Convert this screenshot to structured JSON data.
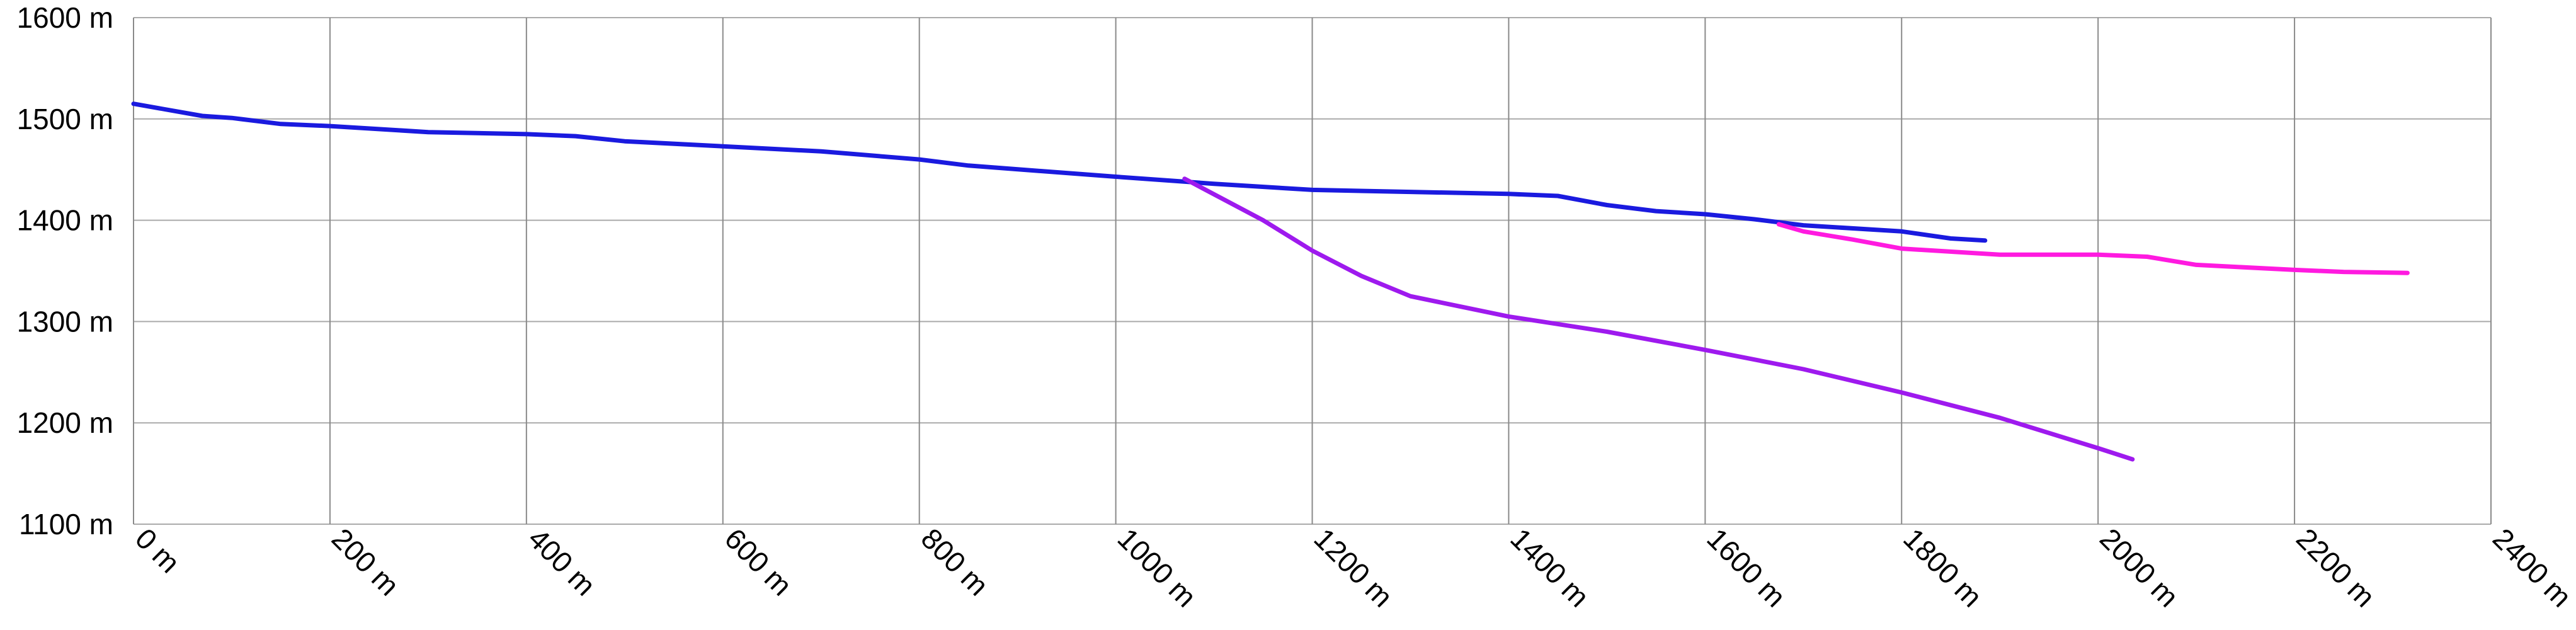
{
  "chart_data": {
    "type": "line",
    "title": "",
    "xlabel": "",
    "ylabel": "",
    "xlim": [
      0,
      2400
    ],
    "ylim": [
      1100,
      1600
    ],
    "x_ticks": [
      "0 m",
      "200 m",
      "400 m",
      "600 m",
      "800 m",
      "1000 m",
      "1200 m",
      "1400 m",
      "1600 m",
      "1800 m",
      "2000 m",
      "2200 m",
      "2400 m"
    ],
    "y_ticks": [
      "1100 m",
      "1200 m",
      "1300 m",
      "1400 m",
      "1500 m",
      "1600 m"
    ],
    "grid": true,
    "series": [
      {
        "color": "#1a1adf",
        "points": [
          [
            0,
            1515
          ],
          [
            70,
            1503
          ],
          [
            100,
            1501
          ],
          [
            150,
            1495
          ],
          [
            200,
            1493
          ],
          [
            300,
            1487
          ],
          [
            400,
            1485
          ],
          [
            450,
            1483
          ],
          [
            500,
            1478
          ],
          [
            600,
            1473
          ],
          [
            700,
            1468
          ],
          [
            800,
            1460
          ],
          [
            850,
            1454
          ],
          [
            1000,
            1443
          ],
          [
            1100,
            1436
          ],
          [
            1200,
            1430
          ],
          [
            1300,
            1428
          ],
          [
            1400,
            1426
          ],
          [
            1450,
            1424
          ],
          [
            1500,
            1415
          ],
          [
            1550,
            1409
          ],
          [
            1600,
            1406
          ],
          [
            1650,
            1401
          ],
          [
            1700,
            1395
          ],
          [
            1800,
            1389
          ],
          [
            1850,
            1382
          ],
          [
            1885,
            1380
          ]
        ]
      },
      {
        "color": "#9e1aee",
        "points": [
          [
            1070,
            1441
          ],
          [
            1150,
            1400
          ],
          [
            1200,
            1370
          ],
          [
            1250,
            1345
          ],
          [
            1300,
            1325
          ],
          [
            1400,
            1305
          ],
          [
            1500,
            1290
          ],
          [
            1600,
            1272
          ],
          [
            1700,
            1253
          ],
          [
            1800,
            1230
          ],
          [
            1900,
            1205
          ],
          [
            2000,
            1175
          ],
          [
            2035,
            1164
          ]
        ]
      },
      {
        "color": "#ff1ae0",
        "points": [
          [
            1675,
            1396
          ],
          [
            1700,
            1389
          ],
          [
            1750,
            1381
          ],
          [
            1800,
            1372
          ],
          [
            1900,
            1366
          ],
          [
            2000,
            1366
          ],
          [
            2050,
            1364
          ],
          [
            2100,
            1356
          ],
          [
            2200,
            1351
          ],
          [
            2250,
            1349
          ],
          [
            2315,
            1348
          ]
        ]
      }
    ]
  }
}
